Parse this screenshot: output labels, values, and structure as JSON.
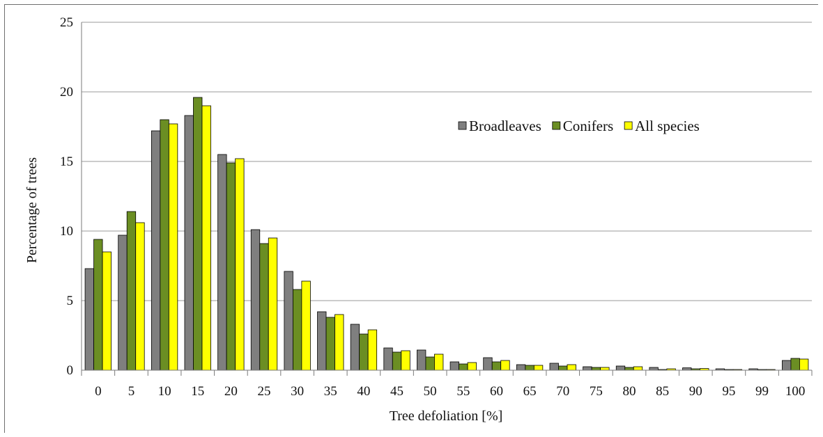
{
  "chart_data": {
    "type": "bar",
    "title": "",
    "xlabel": "Tree defoliation [%]",
    "ylabel": "Percentage of trees",
    "ylim": [
      0,
      25
    ],
    "yticks": [
      0,
      5,
      10,
      15,
      20,
      25
    ],
    "grid": true,
    "legend_position": "upper-right",
    "categories": [
      "0",
      "5",
      "10",
      "15",
      "20",
      "25",
      "30",
      "35",
      "40",
      "45",
      "50",
      "55",
      "60",
      "65",
      "70",
      "75",
      "80",
      "85",
      "90",
      "95",
      "99",
      "100"
    ],
    "series": [
      {
        "name": "Broadleaves",
        "color": "#7f7f7f",
        "values": [
          7.3,
          9.7,
          17.2,
          18.3,
          15.5,
          10.1,
          7.1,
          4.2,
          3.3,
          1.6,
          1.45,
          0.6,
          0.9,
          0.4,
          0.5,
          0.25,
          0.3,
          0.2,
          0.17,
          0.1,
          0.1,
          0.7
        ]
      },
      {
        "name": "Conifers",
        "color": "#6b8e23",
        "values": [
          9.4,
          11.4,
          18.0,
          19.6,
          14.9,
          9.1,
          5.8,
          3.8,
          2.6,
          1.3,
          0.95,
          0.45,
          0.6,
          0.35,
          0.3,
          0.2,
          0.2,
          0.05,
          0.1,
          0.05,
          0.05,
          0.85
        ]
      },
      {
        "name": "All species",
        "color": "#ffff00",
        "values": [
          8.5,
          10.6,
          17.7,
          19.0,
          15.2,
          9.5,
          6.4,
          4.0,
          2.9,
          1.4,
          1.15,
          0.55,
          0.7,
          0.35,
          0.4,
          0.2,
          0.25,
          0.1,
          0.12,
          0.05,
          0.05,
          0.8
        ]
      }
    ]
  }
}
